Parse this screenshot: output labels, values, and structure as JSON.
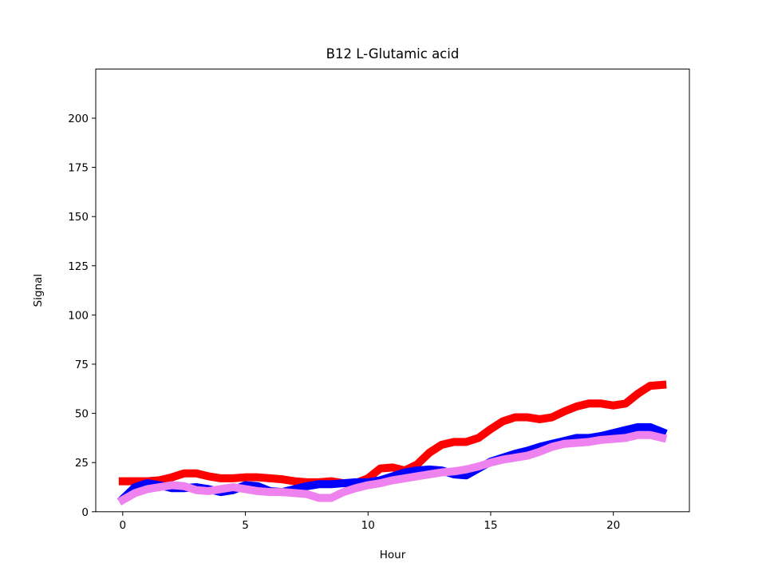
{
  "chart_data": {
    "type": "line",
    "title": "B12 L-Glutamic acid",
    "xlabel": "Hour",
    "ylabel": "Signal",
    "xlim": [
      -1.1,
      23.1
    ],
    "ylim": [
      0,
      225
    ],
    "xticks": [
      0,
      5,
      10,
      15,
      20
    ],
    "yticks": [
      0,
      25,
      50,
      75,
      100,
      125,
      150,
      175,
      200
    ],
    "grid": false,
    "legend": "none",
    "x": [
      0,
      0.5,
      1,
      1.5,
      2,
      2.5,
      3,
      3.5,
      4,
      4.5,
      5,
      5.5,
      6,
      6.5,
      7,
      7.5,
      8,
      8.5,
      9,
      9.5,
      10,
      10.5,
      11,
      11.5,
      12,
      12.5,
      13,
      13.5,
      14,
      14.5,
      15,
      15.5,
      16,
      16.5,
      17,
      17.5,
      18,
      18.5,
      19,
      19.5,
      20,
      20.5,
      21,
      21.5,
      22
    ],
    "series": [
      {
        "color": "#ff0000",
        "values": [
          15.5,
          15.5,
          15.5,
          16,
          17.5,
          19.5,
          19.5,
          18,
          17,
          17,
          17.5,
          17.5,
          17,
          16.5,
          15.5,
          15,
          15,
          15.5,
          14.5,
          14.5,
          17,
          22,
          22.5,
          21,
          24,
          30,
          34,
          35.5,
          35.5,
          37.5,
          42,
          46,
          48,
          48,
          47,
          48,
          51,
          53.5,
          55,
          55,
          54,
          55,
          60,
          64,
          64.5
        ]
      },
      {
        "color": "#0000ff",
        "values": [
          6.5,
          12.5,
          14.5,
          13.5,
          12,
          12,
          12.5,
          11.5,
          10,
          11,
          13.5,
          13,
          10.5,
          10,
          11.5,
          13,
          14,
          14,
          14.5,
          15,
          15,
          16,
          18,
          20,
          21,
          21.5,
          21,
          19,
          18.5,
          22,
          25.5,
          27.5,
          29.5,
          31,
          33,
          34.5,
          36,
          37.5,
          37.5,
          38.5,
          40,
          41.5,
          43,
          43,
          40.5
        ]
      },
      {
        "color": "#ee82ee",
        "values": [
          6,
          9.5,
          11.5,
          12.5,
          13.5,
          13,
          11,
          10.5,
          11.5,
          12.5,
          11.5,
          10.5,
          10,
          10,
          9.5,
          9,
          7,
          7,
          10,
          12,
          13.5,
          14.5,
          16,
          17,
          18,
          19,
          20,
          20.5,
          21.5,
          23,
          25,
          26.5,
          27.5,
          28.5,
          30.5,
          33,
          34.5,
          35,
          35.5,
          36.5,
          37,
          37.5,
          39,
          39,
          37.5
        ]
      }
    ]
  }
}
